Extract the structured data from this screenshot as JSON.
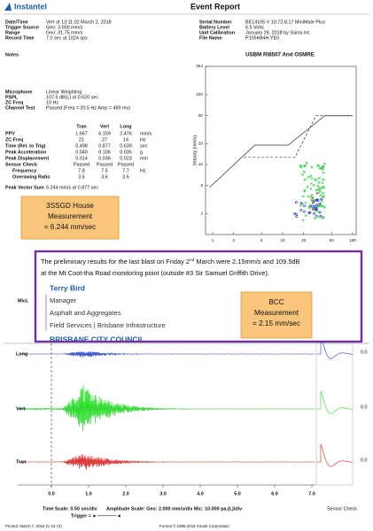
{
  "header": {
    "logo": "Instantel",
    "title": "Event Report"
  },
  "event_info": [
    {
      "label": "Date/Time",
      "value": "Vert at 13:11:02 March 2, 2018"
    },
    {
      "label": "Trigger Source",
      "value": "Geo: 3.000 mm/s"
    },
    {
      "label": "Range",
      "value": "Geo: 31.75 mm/s"
    },
    {
      "label": "Record Time",
      "value": "7.0 sec at 1024 sps"
    }
  ],
  "unit_info": [
    {
      "label": "Serial Number",
      "value": "BE14105 V 10.72-8.17 MiniMate Plus"
    },
    {
      "label": "Battery Level",
      "value": "6.5 Volts"
    },
    {
      "label": "Unit Calibration",
      "value": "January 29, 2018 by Saros Int."
    },
    {
      "label": "File Name",
      "value": "P105H84H.YE0"
    }
  ],
  "notes": "Notes",
  "microphone": [
    {
      "label": "Microphone",
      "value": "Linear Weighting"
    },
    {
      "label": "PSPL",
      "value": "107.5 dB(L) at 0.620 sec"
    },
    {
      "label": "ZC Freq",
      "value": "10 Hz"
    },
    {
      "label": "Channel Test",
      "value": "Passed (Freq = 20.5 Hz Amp = 489 mv)"
    }
  ],
  "channel_table": {
    "columns": [
      "Tran",
      "Vert",
      "Long"
    ],
    "rows": [
      {
        "label": "PPV",
        "cells": [
          "1.667",
          "6.159",
          "2.476"
        ],
        "unit": "mm/s"
      },
      {
        "label": "ZC Freq",
        "cells": [
          "21",
          "27",
          "14"
        ],
        "unit": "Hz"
      },
      {
        "label": "Time (Rel. to Trig)",
        "cells": [
          "0.498",
          "0.877",
          "0.639"
        ],
        "unit": "sec"
      },
      {
        "label": "Peak Acceleration",
        "cells": [
          "0.040",
          "0.106",
          "0.035"
        ],
        "unit": "g"
      },
      {
        "label": "Peak Displacement",
        "cells": [
          "0.014",
          "0.036",
          "0.023"
        ],
        "unit": "mm"
      },
      {
        "label": "Sensor Check",
        "cells": [
          "Passed",
          "Passed",
          "Passed"
        ]
      },
      {
        "label": "Frequency",
        "cells": [
          "7.8",
          "7.5",
          "7.7"
        ],
        "unit": "Hz"
      },
      {
        "label": "Overswing Ratio",
        "cells": [
          "3.5",
          "3.6",
          "3.5"
        ]
      }
    ]
  },
  "peak_vector_sum": {
    "label": "Peak Vector Sum",
    "value": "6.244 mm/s at 0.877 sec"
  },
  "house_callout": [
    "3SSGD House",
    "Measurement",
    "= 6.244 mm/sec"
  ],
  "usbm_chart": {
    "title": "USBM RI8507 And OSMRE",
    "y_label": "Velocity (mm/s)",
    "yticks": [
      254,
      100,
      50,
      20,
      10,
      5,
      2
    ],
    "xticks": [
      1,
      2,
      5,
      10,
      20,
      50,
      100
    ]
  },
  "email": {
    "line1_start": "The preliminary results for the last blast on Friday 2",
    "superscript": "nd",
    "line1_end": " March were 2.15mm/s and 109.5dB",
    "line2": "at the Mt Coot-tha Road monitoring point (outside #3 Sir Samuel Griffith Drive)."
  },
  "signature": {
    "name": "Terry Bird",
    "title": "Manager",
    "department": "Asphalt and Aggregates",
    "division": "Field Services | Brisbane Infrastructure",
    "organisation": "BRISBANE CITY COUNCIL"
  },
  "bcc_callout": [
    "BCC",
    "Measurement",
    "= 2.15 mm/sec"
  ],
  "waveforms": {
    "mic_label": "MicL",
    "channels": [
      {
        "name": "Long",
        "zero": "0.0"
      },
      {
        "name": "Vert",
        "zero": "0.0"
      },
      {
        "name": "Tran",
        "zero": "0.0"
      }
    ],
    "xticks": [
      {
        "value": 0,
        "label": "0.0"
      },
      {
        "value": 1,
        "label": "1.0"
      },
      {
        "value": 2,
        "label": "2.0"
      },
      {
        "value": 3,
        "label": "3.0"
      },
      {
        "value": 4,
        "label": "4.0"
      },
      {
        "value": 5,
        "label": "5.0"
      },
      {
        "value": 6,
        "label": "6.0"
      },
      {
        "value": 7,
        "label": "7.0"
      }
    ]
  },
  "scales": {
    "time_scale": "Time Scale: 0.50 sec/div",
    "amplitude_scale": "Amplitude Scale: Geo: 2.000 mm/s/div Mic: 10.000 pa.(L)/div",
    "trigger": "Trigger = ►————◄",
    "sensor_check": "Sensor Check"
  },
  "footer": {
    "printed": "Printed: March 7, 2018 (V 10.74)",
    "format": "Format © 1995-2015 Xmark Corporation"
  }
}
